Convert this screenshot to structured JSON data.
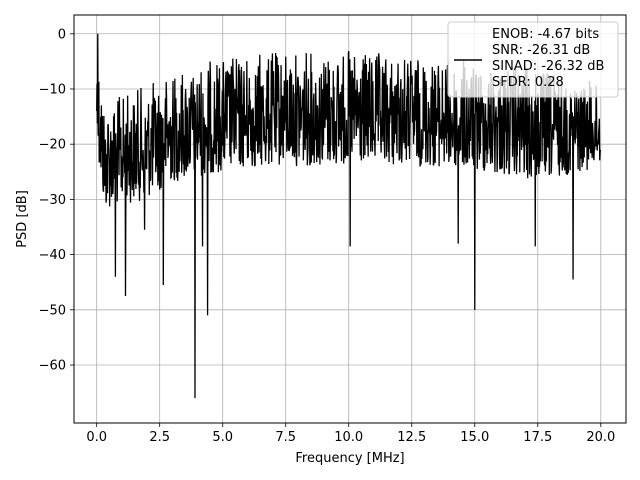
{
  "chart_data": {
    "type": "line",
    "xlabel": "Frequency [MHz]",
    "ylabel": "PSD [dB]",
    "xlim": [
      -0.9,
      21.0
    ],
    "ylim": [
      -70.5,
      3.4
    ],
    "grid": true,
    "legend_position": "top-right",
    "x_ticks": [
      0.0,
      2.5,
      5.0,
      7.5,
      10.0,
      12.5,
      15.0,
      17.5,
      20.0
    ],
    "x_tick_labels": [
      "0.0",
      "2.5",
      "5.0",
      "7.5",
      "10.0",
      "12.5",
      "15.0",
      "17.5",
      "20.0"
    ],
    "y_ticks": [
      0,
      -10,
      -20,
      -30,
      -40,
      -50,
      -60
    ],
    "y_tick_labels": [
      "0",
      "−10",
      "−20",
      "−30",
      "−40",
      "−50",
      "−60"
    ],
    "series": [
      {
        "color": "#000000",
        "x_start": 0.0,
        "x_end": 20.0,
        "envelope": [
          {
            "x": 0.0,
            "y_top": 0.0,
            "y_bottom": -22.0
          },
          {
            "x": 0.3,
            "y_top": -12.0,
            "y_bottom": -32.0
          },
          {
            "x": 1.0,
            "y_top": -11.0,
            "y_bottom": -31.0
          },
          {
            "x": 2.0,
            "y_top": -9.0,
            "y_bottom": -30.0
          },
          {
            "x": 3.0,
            "y_top": -7.0,
            "y_bottom": -27.0
          },
          {
            "x": 5.0,
            "y_top": -4.0,
            "y_bottom": -25.0
          },
          {
            "x": 7.5,
            "y_top": -3.0,
            "y_bottom": -24.0
          },
          {
            "x": 10.0,
            "y_top": -3.0,
            "y_bottom": -24.0
          },
          {
            "x": 12.5,
            "y_top": -4.0,
            "y_bottom": -24.0
          },
          {
            "x": 15.0,
            "y_top": -5.0,
            "y_bottom": -25.0
          },
          {
            "x": 17.5,
            "y_top": -6.0,
            "y_bottom": -27.0
          },
          {
            "x": 20.0,
            "y_top": -9.0,
            "y_bottom": -24.0
          }
        ],
        "dips": [
          {
            "x": 0.04,
            "y": 0.0
          },
          {
            "x": 0.75,
            "y": -44.0
          },
          {
            "x": 1.15,
            "y": -47.5
          },
          {
            "x": 1.9,
            "y": -35.5
          },
          {
            "x": 2.65,
            "y": -45.5
          },
          {
            "x": 3.9,
            "y": -66.0
          },
          {
            "x": 4.4,
            "y": -51.0
          },
          {
            "x": 4.2,
            "y": -38.5
          },
          {
            "x": 10.05,
            "y": -38.5
          },
          {
            "x": 14.35,
            "y": -38.0
          },
          {
            "x": 15.0,
            "y": -50.0
          },
          {
            "x": 17.4,
            "y": -38.5
          },
          {
            "x": 18.9,
            "y": -44.5
          }
        ]
      }
    ],
    "legend": {
      "lines": [
        "ENOB: -4.67 bits",
        "SNR: -26.31 dB",
        "SINAD: -26.32 dB",
        "SFDR: 0.28"
      ]
    }
  }
}
